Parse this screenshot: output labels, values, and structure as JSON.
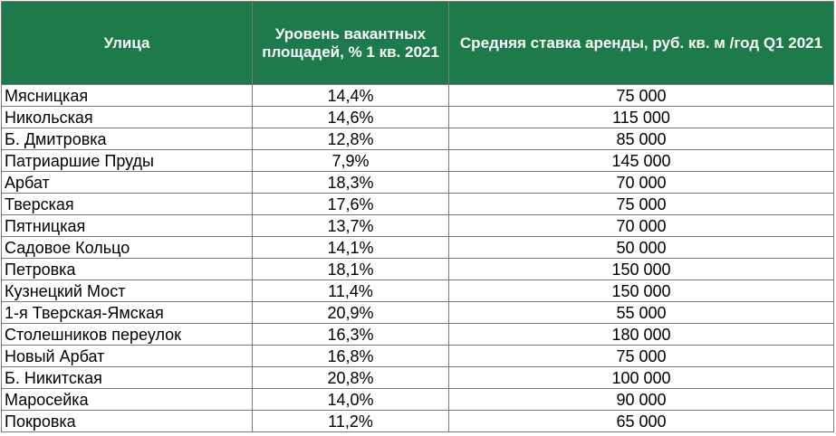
{
  "table": {
    "headers": [
      "Улица",
      "Уровень вакантных площадей, % 1 кв. 2021",
      "Средняя ставка аренды, руб. кв. м /год Q1 2021"
    ],
    "rows": [
      [
        "Мясницкая",
        "14,4%",
        "75 000"
      ],
      [
        "Никольская",
        "14,6%",
        "115 000"
      ],
      [
        "Б. Дмитровка",
        "12,8%",
        "85 000"
      ],
      [
        "Патриаршие Пруды",
        "7,9%",
        "145 000"
      ],
      [
        "Арбат",
        "18,3%",
        "70 000"
      ],
      [
        "Тверская",
        "17,6%",
        "75 000"
      ],
      [
        "Пятницкая",
        "13,7%",
        "70 000"
      ],
      [
        "Садовое Кольцо",
        "14,1%",
        "50 000"
      ],
      [
        "Петровка",
        "18,1%",
        "150 000"
      ],
      [
        "Кузнецкий Мост",
        "11,4%",
        "150 000"
      ],
      [
        "1-я Тверская-Ямская",
        "20,9%",
        "55 000"
      ],
      [
        "Столешников переулок",
        "16,3%",
        "180 000"
      ],
      [
        "Новый Арбат",
        "16,8%",
        "75 000"
      ],
      [
        "Б. Никитская",
        "20,8%",
        "100 000"
      ],
      [
        "Маросейка",
        "14,0%",
        "90 000"
      ],
      [
        "Покровка",
        "11,2%",
        "65 000"
      ]
    ]
  },
  "colors": {
    "header_bg": "#1d7a4b",
    "header_text": "#ffffff",
    "grid_line": "#7a7a7a"
  }
}
